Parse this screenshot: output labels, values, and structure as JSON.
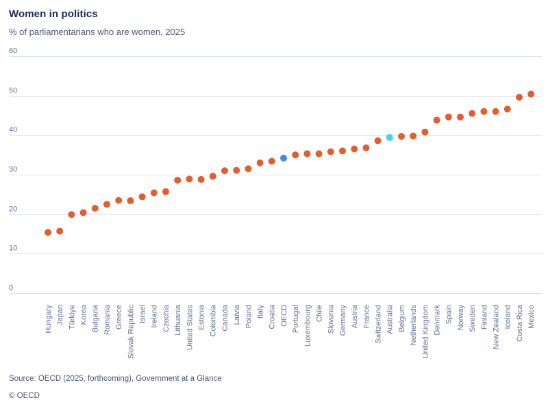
{
  "header": {
    "title": "Women in politics",
    "subtitle": "% of parliamentarians who are women, 2025"
  },
  "footer": {
    "source": "Source: OECD (2025, forthcoming), Government at a Glance",
    "copyright": "© OECD"
  },
  "colors": {
    "dot_default": "#e25e30",
    "dot_oecd": "#3e8ee5",
    "dot_highlight": "#3fd2f4",
    "gridline": "#dde2ec",
    "axis_text": "#646e92",
    "title_text": "#1b2a55",
    "subtitle_text": "#4d5878"
  },
  "chart_data": {
    "type": "scatter",
    "title": "Women in politics",
    "subtitle": "% of parliamentarians who are women, 2025",
    "xlabel": "",
    "ylabel": "% of parliamentarians who are women",
    "ylim": [
      0,
      60
    ],
    "yticks": [
      0,
      10,
      20,
      30,
      40,
      50,
      60
    ],
    "grid": "horizontal",
    "legend": "none",
    "categories": [
      "Hungary",
      "Japan",
      "Türkiye",
      "Korea",
      "Bulgaria",
      "Romania",
      "Greece",
      "Slovak Republic",
      "Israel",
      "Ireland",
      "Czechia",
      "Lithuania",
      "United States",
      "Estonia",
      "Colombia",
      "Canada",
      "Latvia",
      "Poland",
      "Italy",
      "Croatia",
      "OECD",
      "Portugal",
      "Luxembourg",
      "Chile",
      "Slovenia",
      "Germany",
      "Austria",
      "France",
      "Switzerland",
      "Australia",
      "Belgium",
      "Netherlands",
      "United Kingdom",
      "Denmark",
      "Spain",
      "Norway",
      "Sweden",
      "Finland",
      "New Zealand",
      "Iceland",
      "Costa Rica",
      "Mexico"
    ],
    "values": [
      15.4,
      15.7,
      19.9,
      20.4,
      21.5,
      22.5,
      23.5,
      23.4,
      24.4,
      25.4,
      25.7,
      28.6,
      28.9,
      28.8,
      29.6,
      31.0,
      31.1,
      31.5,
      33.0,
      33.4,
      34.2,
      35.0,
      35.3,
      35.3,
      35.8,
      36.0,
      36.5,
      36.8,
      38.6,
      39.4,
      39.7,
      39.8,
      40.8,
      43.8,
      44.6,
      44.6,
      45.5,
      46.0,
      46.0,
      46.6,
      49.6,
      50.4
    ],
    "point_colors": {
      "OECD": "#3e8ee5",
      "Australia": "#3fd2f4"
    }
  }
}
